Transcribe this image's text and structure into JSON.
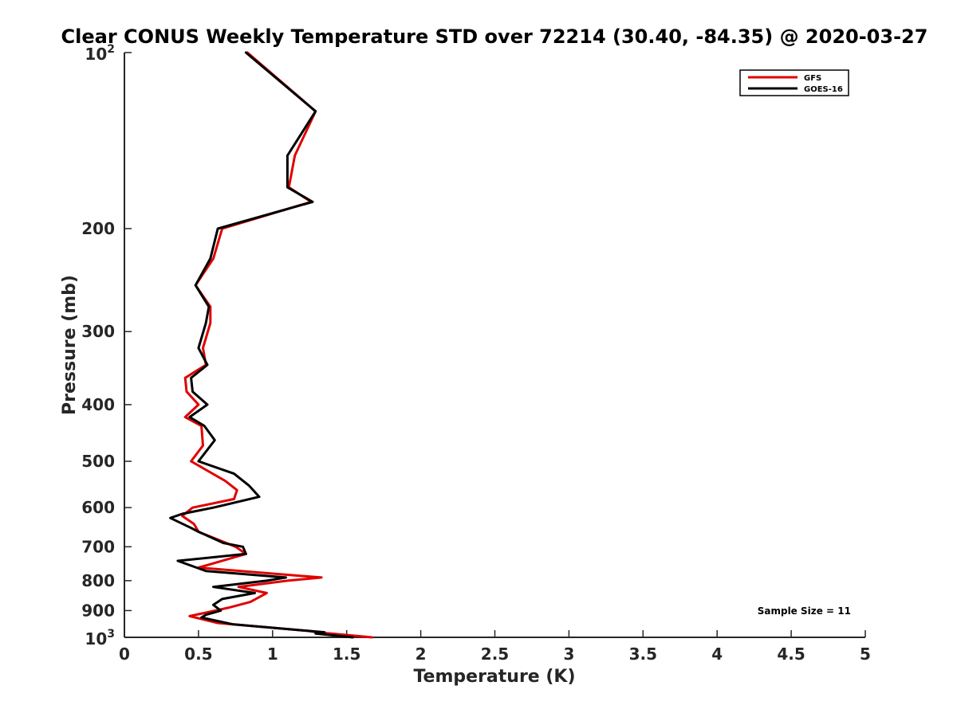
{
  "chart_data": {
    "type": "line",
    "title": "Clear CONUS Weekly Temperature STD over 72214 (30.40, -84.35) @ 2020-03-27",
    "xlabel": "Temperature (K)",
    "ylabel": "Pressure (mb)",
    "xlim": [
      0,
      5
    ],
    "ylim": [
      100,
      1000
    ],
    "yscale": "log",
    "y_reversed": true,
    "grid": false,
    "legend_position": "top-right",
    "x_ticks": [
      0,
      0.5,
      1,
      1.5,
      2,
      2.5,
      3,
      3.5,
      4,
      4.5,
      5
    ],
    "x_tick_labels": [
      "0",
      "0.5",
      "1",
      "1.5",
      "2",
      "2.5",
      "3",
      "3.5",
      "4",
      "4.5",
      "5"
    ],
    "y_ticks": [
      200,
      300,
      400,
      500,
      600,
      700,
      800,
      900
    ],
    "y_tick_labels": [
      "200",
      "300",
      "400",
      "500",
      "600",
      "700",
      "800",
      "900"
    ],
    "y_end_labels": {
      "top": {
        "base": "10",
        "exp": "2"
      },
      "bottom": {
        "base": "10",
        "exp": "3"
      }
    },
    "series": [
      {
        "name": "GFS",
        "color": "#e00000",
        "points": [
          [
            0.83,
            100
          ],
          [
            1.29,
            126
          ],
          [
            1.15,
            150
          ],
          [
            1.11,
            170
          ],
          [
            1.26,
            180
          ],
          [
            0.66,
            200
          ],
          [
            0.6,
            225
          ],
          [
            0.48,
            250
          ],
          [
            0.58,
            272
          ],
          [
            0.58,
            290
          ],
          [
            0.53,
            320
          ],
          [
            0.55,
            342
          ],
          [
            0.41,
            360
          ],
          [
            0.42,
            380
          ],
          [
            0.5,
            400
          ],
          [
            0.41,
            420
          ],
          [
            0.52,
            435
          ],
          [
            0.53,
            470
          ],
          [
            0.45,
            500
          ],
          [
            0.68,
            540
          ],
          [
            0.76,
            560
          ],
          [
            0.74,
            580
          ],
          [
            0.46,
            600
          ],
          [
            0.39,
            620
          ],
          [
            0.47,
            640
          ],
          [
            0.5,
            660
          ],
          [
            0.75,
            700
          ],
          [
            0.82,
            720
          ],
          [
            0.5,
            760
          ],
          [
            1.33,
            790
          ],
          [
            1.1,
            800
          ],
          [
            0.77,
            820
          ],
          [
            0.96,
            840
          ],
          [
            0.85,
            870
          ],
          [
            0.7,
            890
          ],
          [
            0.44,
            920
          ],
          [
            0.63,
            945
          ],
          [
            1.24,
            975
          ],
          [
            1.3,
            980
          ],
          [
            1.67,
            1000
          ]
        ]
      },
      {
        "name": "GOES-16",
        "color": "#000000",
        "points": [
          [
            0.82,
            100
          ],
          [
            1.29,
            126
          ],
          [
            1.1,
            150
          ],
          [
            1.1,
            170
          ],
          [
            1.27,
            180
          ],
          [
            0.63,
            200
          ],
          [
            0.58,
            225
          ],
          [
            0.48,
            250
          ],
          [
            0.57,
            272
          ],
          [
            0.55,
            290
          ],
          [
            0.5,
            320
          ],
          [
            0.56,
            342
          ],
          [
            0.45,
            360
          ],
          [
            0.46,
            380
          ],
          [
            0.56,
            400
          ],
          [
            0.44,
            420
          ],
          [
            0.54,
            435
          ],
          [
            0.61,
            460
          ],
          [
            0.5,
            500
          ],
          [
            0.74,
            525
          ],
          [
            0.84,
            550
          ],
          [
            0.91,
            575
          ],
          [
            0.6,
            600
          ],
          [
            0.39,
            615
          ],
          [
            0.31,
            625
          ],
          [
            0.45,
            650
          ],
          [
            0.5,
            660
          ],
          [
            0.67,
            690
          ],
          [
            0.8,
            700
          ],
          [
            0.82,
            720
          ],
          [
            0.36,
            740
          ],
          [
            0.55,
            770
          ],
          [
            1.09,
            790
          ],
          [
            0.96,
            800
          ],
          [
            0.6,
            820
          ],
          [
            0.88,
            840
          ],
          [
            0.66,
            860
          ],
          [
            0.6,
            880
          ],
          [
            0.65,
            900
          ],
          [
            0.55,
            915
          ],
          [
            0.52,
            925
          ],
          [
            0.73,
            950
          ],
          [
            1.35,
            980
          ],
          [
            1.29,
            985
          ],
          [
            1.54,
            1000
          ]
        ]
      }
    ],
    "annotations": [
      "Sample Size = 11"
    ]
  }
}
